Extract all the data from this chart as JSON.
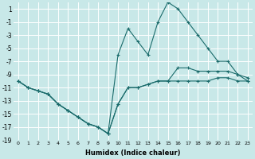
{
  "xlabel": "Humidex (Indice chaleur)",
  "xlim": [
    -0.5,
    23.5
  ],
  "ylim": [
    -19,
    2
  ],
  "xticks": [
    0,
    1,
    2,
    3,
    4,
    5,
    6,
    7,
    8,
    9,
    10,
    11,
    12,
    13,
    14,
    15,
    16,
    17,
    18,
    19,
    20,
    21,
    22,
    23
  ],
  "yticks": [
    1,
    -1,
    -3,
    -5,
    -7,
    -9,
    -11,
    -13,
    -15,
    -17,
    -19
  ],
  "background_color": "#c8e8e8",
  "grid_color": "#ffffff",
  "line_color": "#1a6b6b",
  "lines": [
    {
      "x": [
        0,
        1,
        2,
        3,
        4,
        5,
        6,
        7,
        8,
        9,
        10,
        11,
        12,
        13,
        14,
        15,
        16,
        17,
        18,
        19,
        20,
        21,
        22,
        23
      ],
      "y": [
        -10,
        -11,
        -11.5,
        -12,
        -13.5,
        -14.5,
        -15.5,
        -16.5,
        -17,
        -18,
        -13.5,
        -11,
        -11,
        -10.5,
        -10,
        -10,
        -10,
        -10,
        -10,
        -10,
        -9.5,
        -9.5,
        -10,
        -10
      ]
    },
    {
      "x": [
        0,
        1,
        2,
        3,
        4,
        5,
        6,
        7,
        8,
        9,
        10,
        11,
        12,
        13,
        14,
        15,
        16,
        17,
        18,
        19,
        20,
        21,
        22,
        23
      ],
      "y": [
        -10,
        -11,
        -11.5,
        -12,
        -13.5,
        -14.5,
        -15.5,
        -16.5,
        -17,
        -18,
        -6,
        -2,
        -4,
        -6,
        -1,
        2,
        1,
        -1,
        -3,
        -5,
        -7,
        -7,
        -9,
        -10
      ]
    },
    {
      "x": [
        0,
        1,
        2,
        3,
        4,
        5,
        6,
        7,
        8,
        9,
        10,
        11,
        12,
        13,
        14,
        15,
        16,
        17,
        18,
        19,
        20,
        21,
        22,
        23
      ],
      "y": [
        -10,
        -11,
        -11.5,
        -12,
        -13.5,
        -14.5,
        -15.5,
        -16.5,
        -17,
        -18,
        -13.5,
        -11,
        -11,
        -10.5,
        -10,
        -10,
        -8,
        -8,
        -8.5,
        -8.5,
        -8.5,
        -8.5,
        -9,
        -9.5
      ]
    }
  ]
}
